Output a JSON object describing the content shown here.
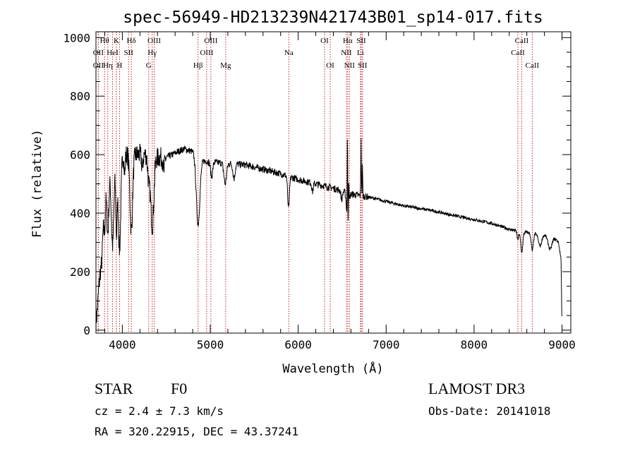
{
  "chart_data": {
    "type": "line",
    "title": "spec-56949-HD213239N421743B01_sp14-017.fits",
    "xlabel": "Wavelength (Å)",
    "ylabel": "Flux (relative)",
    "xlim": [
      3700,
      9100
    ],
    "ylim": [
      -10,
      1020
    ],
    "x_ticks": [
      4000,
      5000,
      6000,
      7000,
      8000,
      9000
    ],
    "x_tick_labels": [
      "4000",
      "5000",
      "6000",
      "7000",
      "8000",
      "9000"
    ],
    "y_ticks": [
      0,
      200,
      400,
      600,
      800,
      1000
    ],
    "y_tick_labels": [
      "0",
      "200",
      "400",
      "600",
      "800",
      "1000"
    ],
    "grid": false,
    "series": [
      {
        "name": "spectrum",
        "color": "#000000",
        "continuum": [
          [
            3700,
            420
          ],
          [
            3790,
            520
          ],
          [
            3850,
            560
          ],
          [
            3900,
            585
          ],
          [
            4000,
            600
          ],
          [
            4100,
            600
          ],
          [
            4300,
            600
          ],
          [
            4400,
            590
          ],
          [
            4500,
            590
          ],
          [
            4600,
            605
          ],
          [
            4700,
            620
          ],
          [
            4800,
            610
          ],
          [
            4900,
            580
          ],
          [
            5000,
            575
          ],
          [
            5200,
            570
          ],
          [
            5400,
            565
          ],
          [
            5600,
            550
          ],
          [
            5800,
            535
          ],
          [
            6000,
            515
          ],
          [
            6200,
            500
          ],
          [
            6400,
            485
          ],
          [
            6600,
            465
          ],
          [
            6800,
            455
          ],
          [
            7000,
            440
          ],
          [
            7200,
            425
          ],
          [
            7500,
            410
          ],
          [
            7800,
            390
          ],
          [
            8000,
            378
          ],
          [
            8200,
            365
          ],
          [
            8400,
            345
          ],
          [
            8500,
            338
          ],
          [
            8700,
            330
          ],
          [
            8900,
            320
          ],
          [
            8960,
            300
          ],
          [
            8990,
            240
          ],
          [
            9000,
            0
          ]
        ],
        "absorption": [
          [
            3700,
            380,
            30
          ],
          [
            3750,
            150,
            20
          ],
          [
            3770,
            120,
            12
          ],
          [
            3798,
            170,
            10
          ],
          [
            3835,
            220,
            12
          ],
          [
            3889,
            290,
            15
          ],
          [
            3933,
            250,
            8
          ],
          [
            3968,
            320,
            14
          ],
          [
            4026,
            70,
            6
          ],
          [
            4102,
            260,
            15
          ],
          [
            4227,
            50,
            8
          ],
          [
            4300,
            80,
            12
          ],
          [
            4340,
            240,
            18
          ],
          [
            4471,
            50,
            8
          ],
          [
            4861,
            230,
            20
          ],
          [
            5015,
            50,
            12
          ],
          [
            5170,
            70,
            15
          ],
          [
            5270,
            50,
            12
          ],
          [
            5890,
            110,
            10
          ],
          [
            6163,
            30,
            8
          ],
          [
            6495,
            30,
            8
          ],
          [
            6563,
            110,
            12
          ],
          [
            8498,
            30,
            8
          ],
          [
            8542,
            70,
            12
          ],
          [
            8662,
            60,
            12
          ],
          [
            8750,
            40,
            18
          ],
          [
            8865,
            45,
            22
          ]
        ],
        "emission": [
          [
            6560,
            300,
            3
          ],
          [
            6575,
            120,
            3
          ],
          [
            6715,
            200,
            3
          ],
          [
            6730,
            100,
            3
          ]
        ],
        "noise_seed": 7,
        "noise_amplitude": 12
      }
    ],
    "lines": [
      {
        "wave": 3727,
        "label": "OII",
        "row": 2
      },
      {
        "wave": 3727,
        "label": "OII",
        "row": 3
      },
      {
        "wave": 3798,
        "label": "Hθ",
        "row": 1
      },
      {
        "wave": 3835,
        "label": "Hη",
        "row": 3
      },
      {
        "wave": 3889,
        "label": "HeI",
        "row": 2
      },
      {
        "wave": 3933,
        "label": "K",
        "row": 1
      },
      {
        "wave": 3968,
        "label": "H",
        "row": 3
      },
      {
        "wave": 4071,
        "label": "SII",
        "row": 2
      },
      {
        "wave": 4102,
        "label": "Hδ",
        "row": 1
      },
      {
        "wave": 4300,
        "label": "G",
        "row": 3
      },
      {
        "wave": 4340,
        "label": "Hγ",
        "row": 2
      },
      {
        "wave": 4363,
        "label": "OIII",
        "row": 1
      },
      {
        "wave": 4861,
        "label": "Hβ",
        "row": 3
      },
      {
        "wave": 4959,
        "label": "OIII",
        "row": 2
      },
      {
        "wave": 5007,
        "label": "OIII",
        "row": 1
      },
      {
        "wave": 5175,
        "label": "Mg",
        "row": 3
      },
      {
        "wave": 5893,
        "label": "Na",
        "row": 2
      },
      {
        "wave": 6300,
        "label": "OI",
        "row": 1
      },
      {
        "wave": 6364,
        "label": "OI",
        "row": 3
      },
      {
        "wave": 6548,
        "label": "NII",
        "row": 2
      },
      {
        "wave": 6563,
        "label": "Hα",
        "row": 1
      },
      {
        "wave": 6583,
        "label": "NII",
        "row": 3
      },
      {
        "wave": 6708,
        "label": "Li",
        "row": 2
      },
      {
        "wave": 6717,
        "label": "SII",
        "row": 1
      },
      {
        "wave": 6731,
        "label": "SII",
        "row": 3
      },
      {
        "wave": 8498,
        "label": "CaII",
        "row": 2
      },
      {
        "wave": 8542,
        "label": "CaII",
        "row": 1
      },
      {
        "wave": 8662,
        "label": "CaII",
        "row": 3
      }
    ]
  },
  "info": {
    "object_class": "STAR",
    "subclass": "F0",
    "survey": "LAMOST DR3",
    "cz": "cz = 2.4 ± 7.3 km/s",
    "obs_date": "Obs-Date: 20141018",
    "coords": "RA = 320.22915, DEC =  43.37241"
  }
}
